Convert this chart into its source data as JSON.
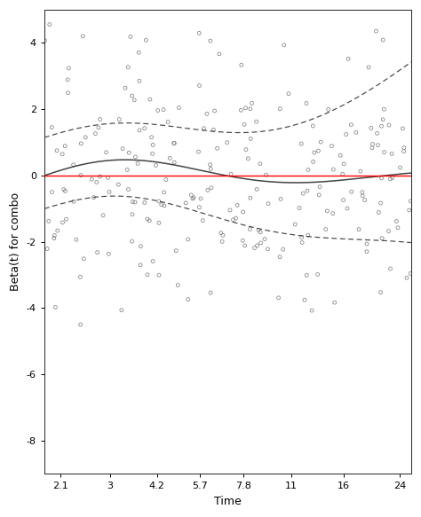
{
  "title": "",
  "xlabel": "Time",
  "ylabel": "Beta(t) for combo",
  "ylim": [
    -9,
    5
  ],
  "yticks": [
    -8,
    -6,
    -4,
    -2,
    0,
    2,
    4
  ],
  "xtick_labels": [
    "2.1",
    "3",
    "4.2",
    "5.7",
    "7.8",
    "11",
    "16",
    "24"
  ],
  "xtick_vals": [
    2.1,
    3,
    4.2,
    5.7,
    7.8,
    11,
    16,
    24
  ],
  "red_line_y": 0.0,
  "smooth_line_color": "#444444",
  "dashed_line_color": "#444444",
  "scatter_facecolor": "none",
  "scatter_edgecolor": "#777777",
  "scatter_size": 8,
  "scatter_linewidth": 0.5,
  "background_color": "#ffffff",
  "x_log_min": 0.2718,
  "x_log_max": 1.415,
  "n_points": 240,
  "random_seed": 77
}
